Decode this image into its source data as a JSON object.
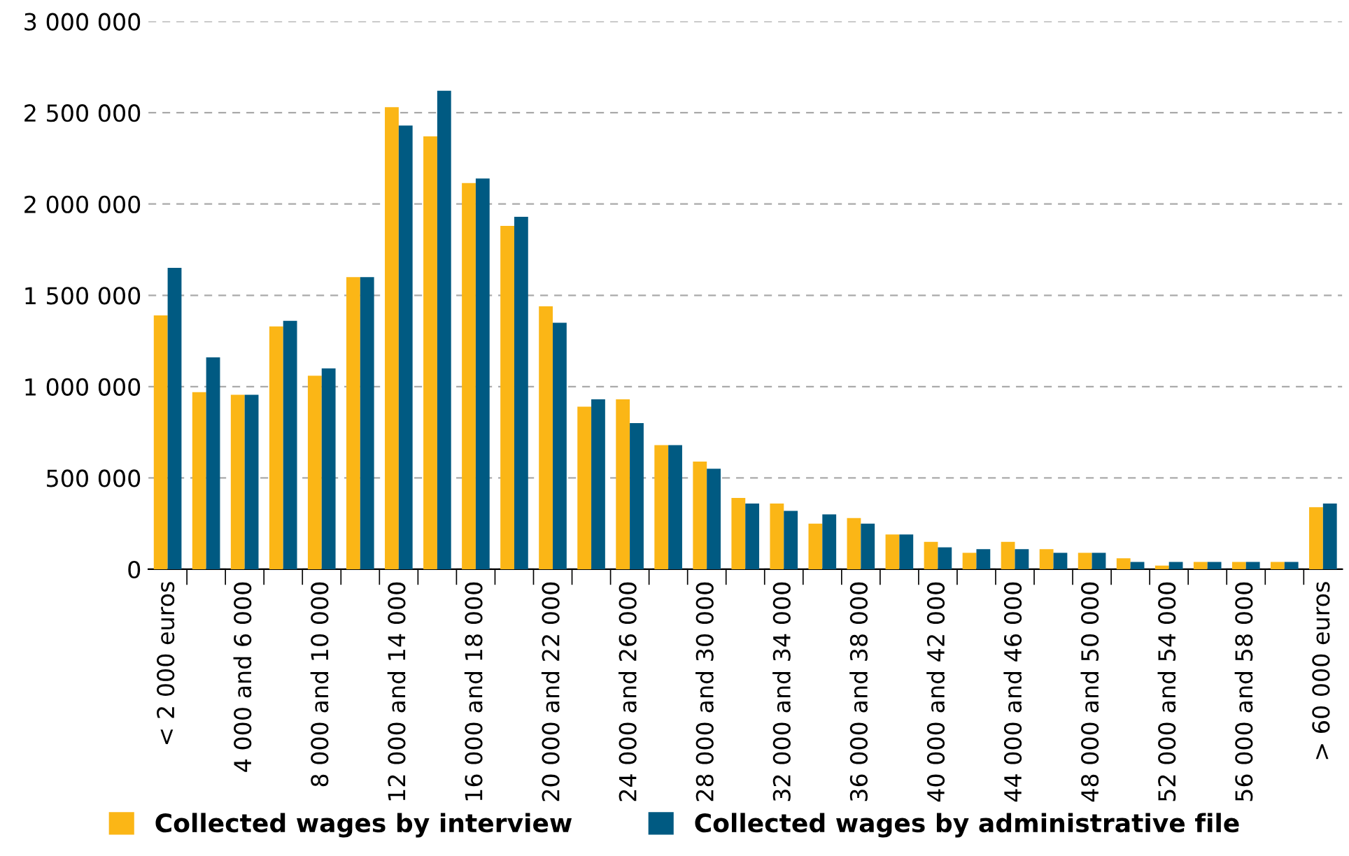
{
  "chart_data": {
    "type": "bar",
    "categories": [
      "< 2 000 euros",
      null,
      "4 000 and 6 000",
      null,
      "8 000 and 10 000",
      null,
      "12 000 and 14 000",
      null,
      "16 000 and 18 000",
      null,
      "20 000 and 22 000",
      null,
      "24 000 and 26 000",
      null,
      "28 000 and 30 000",
      null,
      "32 000 and 34 000",
      null,
      "36 000 and 38 000",
      null,
      "40 000 and 42 000",
      null,
      "44 000 and 46 000",
      null,
      "48 000 and 50 000",
      null,
      "52 000 and 54 000",
      null,
      "56 000 and 58 000",
      null,
      "> 60 000 euros"
    ],
    "series": [
      {
        "name": "Collected wages by interview",
        "color": "#fbb616",
        "values": [
          1390000,
          970000,
          955000,
          1330000,
          1060000,
          1600000,
          2530000,
          2370000,
          2115000,
          1880000,
          1440000,
          890000,
          930000,
          680000,
          590000,
          390000,
          360000,
          250000,
          280000,
          190000,
          150000,
          90000,
          150000,
          110000,
          90000,
          60000,
          20000,
          40000,
          40000,
          40000,
          340000
        ]
      },
      {
        "name": "Collected wages by administrative file",
        "color": "#005a82",
        "values": [
          1650000,
          1160000,
          955000,
          1360000,
          1100000,
          1600000,
          2430000,
          2620000,
          2140000,
          1930000,
          1350000,
          930000,
          800000,
          680000,
          550000,
          360000,
          320000,
          300000,
          250000,
          190000,
          120000,
          110000,
          110000,
          90000,
          90000,
          40000,
          40000,
          40000,
          40000,
          40000,
          360000
        ]
      }
    ],
    "ylim": [
      0,
      3000000
    ],
    "yticks": [
      {
        "value": 0,
        "label": "0"
      },
      {
        "value": 500000,
        "label": "500 000"
      },
      {
        "value": 1000000,
        "label": "1 000 000"
      },
      {
        "value": 1500000,
        "label": "1 500 000"
      },
      {
        "value": 2000000,
        "label": "2 000 000"
      },
      {
        "value": 2500000,
        "label": "2 500 000"
      },
      {
        "value": 3000000,
        "label": "3 000 000"
      }
    ],
    "grid": "y",
    "legend": "bottom"
  }
}
